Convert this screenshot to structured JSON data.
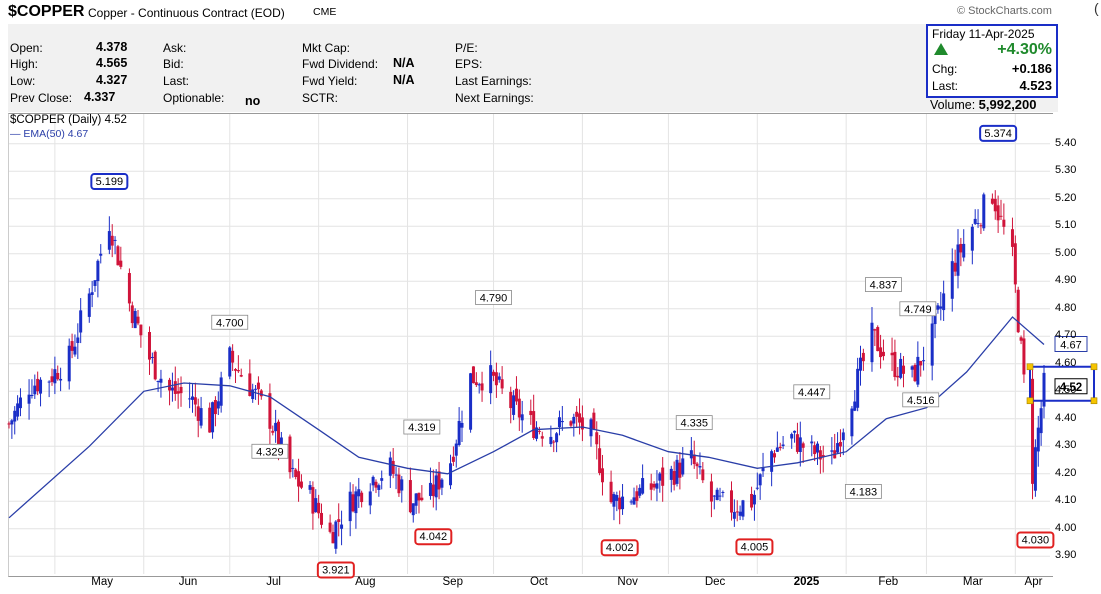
{
  "header": {
    "symbol": "$COPPER",
    "description": "Copper - Continuous Contract (EOD)",
    "exchange": "CME",
    "source": "© StockCharts.com"
  },
  "fields": {
    "open_label": "Open:",
    "open": "4.378",
    "high_label": "High:",
    "high": "4.565",
    "low_label": "Low:",
    "low": "4.327",
    "prevclose_label": "Prev Close:",
    "prevclose": "4.337",
    "ask_label": "Ask:",
    "bid_label": "Bid:",
    "last_label": "Last:",
    "optionable_label": "Optionable:",
    "optionable": "no",
    "mktcap_label": "Mkt Cap:",
    "fwddiv_label": "Fwd Dividend:",
    "fwddiv": "N/A",
    "fwdyield_label": "Fwd Yield:",
    "fwdyield": "N/A",
    "sctr_label": "SCTR:",
    "pe_label": "P/E:",
    "eps_label": "EPS:",
    "lastearn_label": "Last Earnings:",
    "nextearn_label": "Next Earnings:"
  },
  "quote": {
    "date": "Friday  11-Apr-2025",
    "pct_change": "+4.30%",
    "chg_label": "Chg:",
    "chg": "+0.186",
    "last_label": "Last:",
    "last": "4.523",
    "volume_label": "Volume:",
    "volume": "5,992,200"
  },
  "legend": {
    "price": "$COPPER (Daily) 4.52",
    "ema": "EMA(50) 4.67"
  },
  "colors": {
    "up": "#1a2ec7",
    "down": "#d0143a",
    "ema": "#2a3ea8",
    "annot_high": "#1a2ec7",
    "annot_low": "#e02020"
  },
  "chart_data": {
    "type": "candlestick",
    "title": "$COPPER (Daily)",
    "ylim": [
      3.85,
      5.45
    ],
    "yticks": [
      "5.40",
      "5.30",
      "5.20",
      "5.10",
      "5.00",
      "4.90",
      "4.80",
      "4.70",
      "4.60",
      "4.50",
      "4.40",
      "4.30",
      "4.20",
      "4.10",
      "4.00",
      "3.90"
    ],
    "x_range": [
      "2024-04-15",
      "2025-04-11"
    ],
    "month_ticks": [
      {
        "label": "May",
        "date": "2024-05-01"
      },
      {
        "label": "Jun",
        "date": "2024-06-01"
      },
      {
        "label": "Jul",
        "date": "2024-07-01"
      },
      {
        "label": "Aug",
        "date": "2024-08-01"
      },
      {
        "label": "Sep",
        "date": "2024-09-01"
      },
      {
        "label": "Oct",
        "date": "2024-10-01"
      },
      {
        "label": "Nov",
        "date": "2024-11-01"
      },
      {
        "label": "Dec",
        "date": "2024-12-01"
      },
      {
        "label": "2025",
        "date": "2025-01-01"
      },
      {
        "label": "Feb",
        "date": "2025-02-01"
      },
      {
        "label": "Mar",
        "date": "2025-03-01"
      },
      {
        "label": "Apr",
        "date": "2025-04-01"
      }
    ],
    "close_path": [
      [
        "2024-04-15",
        4.38
      ],
      [
        "2024-04-22",
        4.52
      ],
      [
        "2024-04-29",
        4.55
      ],
      [
        "2024-05-06",
        4.62
      ],
      [
        "2024-05-13",
        4.85
      ],
      [
        "2024-05-20",
        5.12
      ],
      [
        "2024-05-27",
        4.82
      ],
      [
        "2024-06-03",
        4.62
      ],
      [
        "2024-06-10",
        4.5
      ],
      [
        "2024-06-17",
        4.48
      ],
      [
        "2024-06-24",
        4.38
      ],
      [
        "2024-07-01",
        4.62
      ],
      [
        "2024-07-08",
        4.52
      ],
      [
        "2024-07-15",
        4.4
      ],
      [
        "2024-07-22",
        4.2
      ],
      [
        "2024-07-29",
        4.12
      ],
      [
        "2024-08-05",
        3.98
      ],
      [
        "2024-08-12",
        4.1
      ],
      [
        "2024-08-19",
        4.18
      ],
      [
        "2024-08-26",
        4.22
      ],
      [
        "2024-09-02",
        4.1
      ],
      [
        "2024-09-09",
        4.12
      ],
      [
        "2024-09-16",
        4.25
      ],
      [
        "2024-09-23",
        4.55
      ],
      [
        "2024-09-30",
        4.55
      ],
      [
        "2024-10-07",
        4.45
      ],
      [
        "2024-10-14",
        4.38
      ],
      [
        "2024-10-21",
        4.35
      ],
      [
        "2024-10-28",
        4.4
      ],
      [
        "2024-11-04",
        4.35
      ],
      [
        "2024-11-11",
        4.1
      ],
      [
        "2024-11-18",
        4.12
      ],
      [
        "2024-11-25",
        4.15
      ],
      [
        "2024-12-02",
        4.2
      ],
      [
        "2024-12-09",
        4.25
      ],
      [
        "2024-12-16",
        4.1
      ],
      [
        "2024-12-23",
        4.08
      ],
      [
        "2024-12-30",
        4.1
      ],
      [
        "2025-01-06",
        4.28
      ],
      [
        "2025-01-13",
        4.33
      ],
      [
        "2025-01-20",
        4.28
      ],
      [
        "2025-01-27",
        4.25
      ],
      [
        "2025-02-03",
        4.48
      ],
      [
        "2025-02-10",
        4.7
      ],
      [
        "2025-02-17",
        4.6
      ],
      [
        "2025-02-24",
        4.55
      ],
      [
        "2025-03-03",
        4.7
      ],
      [
        "2025-03-10",
        4.95
      ],
      [
        "2025-03-17",
        5.1
      ],
      [
        "2025-03-24",
        5.22
      ],
      [
        "2025-03-31",
        4.98
      ],
      [
        "2025-04-07",
        4.2
      ],
      [
        "2025-04-11",
        4.52
      ]
    ],
    "ema_50": [
      [
        "2024-04-15",
        4.04
      ],
      [
        "2024-05-13",
        4.3
      ],
      [
        "2024-06-01",
        4.5
      ],
      [
        "2024-06-15",
        4.53
      ],
      [
        "2024-07-01",
        4.52
      ],
      [
        "2024-07-15",
        4.48
      ],
      [
        "2024-08-01",
        4.36
      ],
      [
        "2024-08-15",
        4.26
      ],
      [
        "2024-09-01",
        4.22
      ],
      [
        "2024-09-15",
        4.2
      ],
      [
        "2024-10-01",
        4.28
      ],
      [
        "2024-10-15",
        4.36
      ],
      [
        "2024-11-01",
        4.37
      ],
      [
        "2024-11-15",
        4.34
      ],
      [
        "2024-12-01",
        4.28
      ],
      [
        "2024-12-15",
        4.26
      ],
      [
        "2025-01-01",
        4.22
      ],
      [
        "2025-01-15",
        4.24
      ],
      [
        "2025-02-01",
        4.28
      ],
      [
        "2025-02-15",
        4.4
      ],
      [
        "2025-03-01",
        4.44
      ],
      [
        "2025-03-15",
        4.57
      ],
      [
        "2025-03-31",
        4.77
      ],
      [
        "2025-04-11",
        4.67
      ]
    ],
    "annotations": [
      {
        "date": "2024-05-20",
        "value": 5.199,
        "label": "5.199",
        "kind": "high-box"
      },
      {
        "date": "2024-07-01",
        "value": 4.7,
        "label": "4.700",
        "kind": "peak"
      },
      {
        "date": "2024-07-15",
        "value": 4.329,
        "label": "4.329",
        "kind": "trough"
      },
      {
        "date": "2024-08-07",
        "value": 3.921,
        "label": "3.921",
        "kind": "low-box"
      },
      {
        "date": "2024-09-06",
        "value": 4.319,
        "label": "4.319",
        "kind": "peak"
      },
      {
        "date": "2024-09-10",
        "value": 4.042,
        "label": "4.042",
        "kind": "low-box"
      },
      {
        "date": "2024-10-01",
        "value": 4.79,
        "label": "4.790",
        "kind": "peak"
      },
      {
        "date": "2024-11-14",
        "value": 4.002,
        "label": "4.002",
        "kind": "low-box"
      },
      {
        "date": "2024-12-10",
        "value": 4.335,
        "label": "4.335",
        "kind": "peak"
      },
      {
        "date": "2024-12-31",
        "value": 4.005,
        "label": "4.005",
        "kind": "low-box"
      },
      {
        "date": "2025-01-20",
        "value": 4.447,
        "label": "4.447",
        "kind": "peak"
      },
      {
        "date": "2025-02-07",
        "value": 4.183,
        "label": "4.183",
        "kind": "trough"
      },
      {
        "date": "2025-02-14",
        "value": 4.837,
        "label": "4.837",
        "kind": "peak"
      },
      {
        "date": "2025-02-26",
        "value": 4.749,
        "label": "4.749",
        "kind": "peak"
      },
      {
        "date": "2025-02-27",
        "value": 4.516,
        "label": "4.516",
        "kind": "trough"
      },
      {
        "date": "2025-03-26",
        "value": 5.374,
        "label": "5.374",
        "kind": "high-box"
      },
      {
        "date": "2025-04-08",
        "value": 4.03,
        "label": "4.030",
        "kind": "low-box"
      }
    ],
    "last_price_label": "4.52",
    "ema_label": "4.67"
  }
}
